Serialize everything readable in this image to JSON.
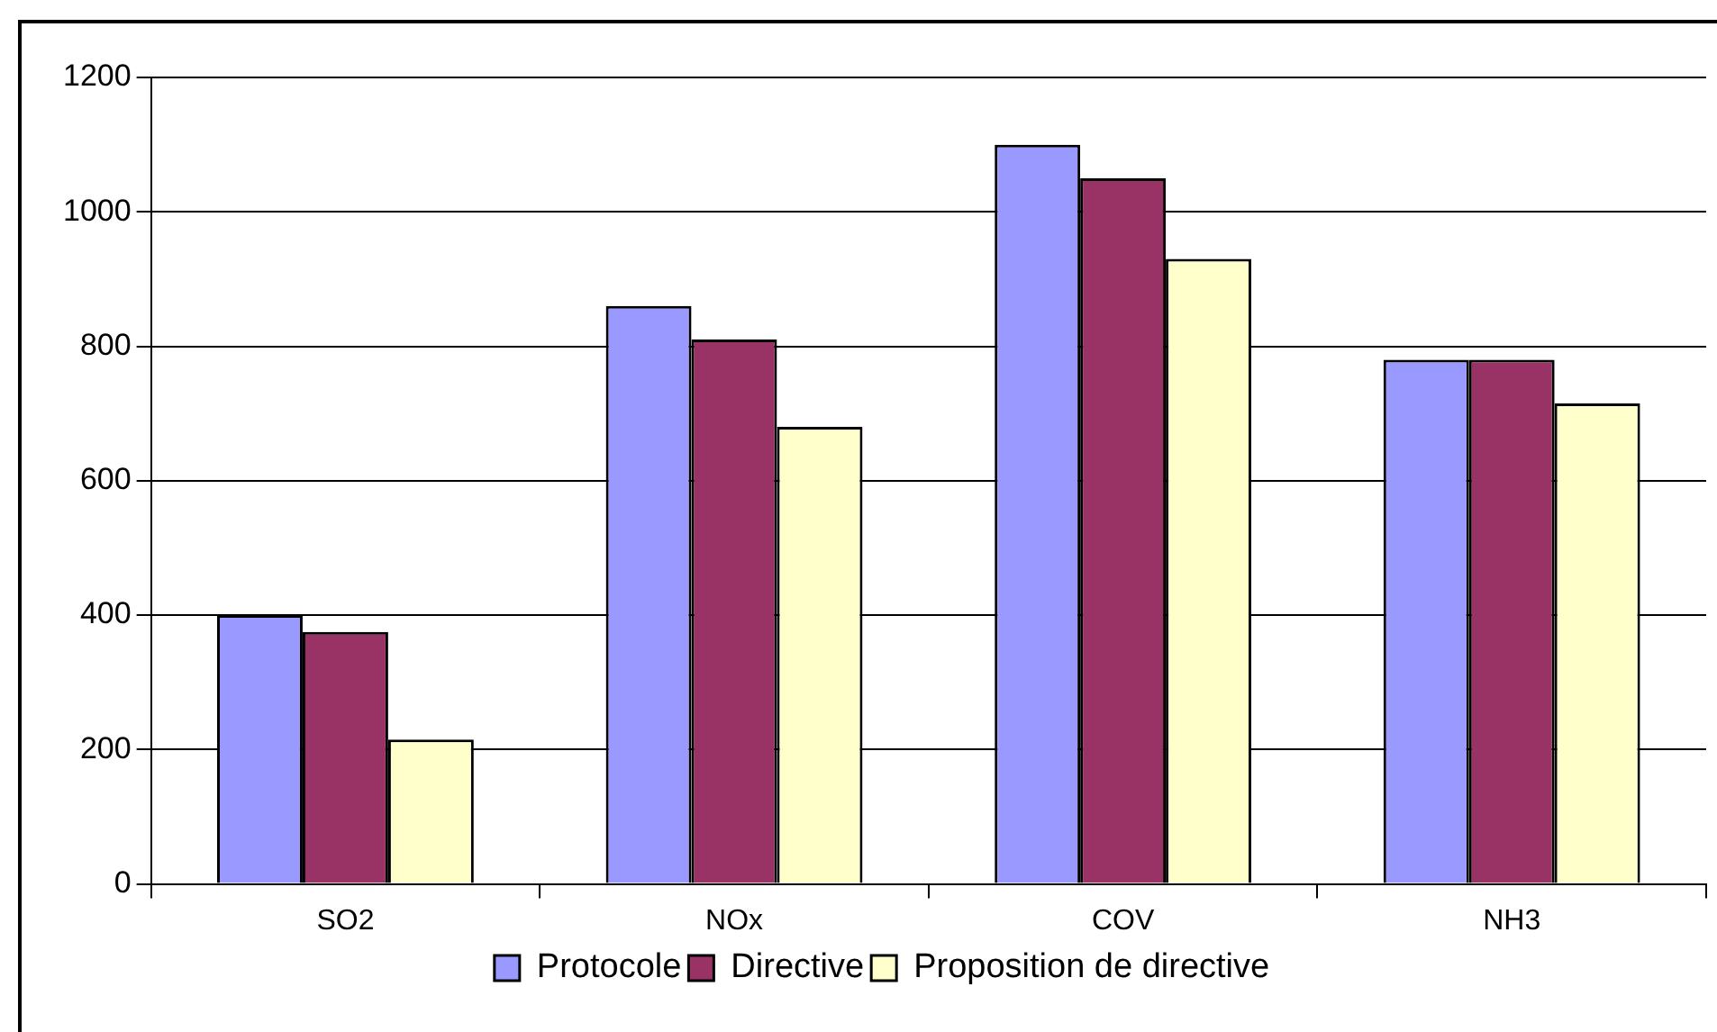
{
  "chart_data": {
    "type": "bar",
    "categories": [
      "SO2",
      "NOx",
      "COV",
      "NH3"
    ],
    "series": [
      {
        "name": "Protocole",
        "color": "#9999ff",
        "values": [
          400,
          860,
          1100,
          780
        ]
      },
      {
        "name": "Directive",
        "color": "#993366",
        "values": [
          375,
          810,
          1050,
          780
        ]
      },
      {
        "name": "Proposition de directive",
        "color": "#ffffcc",
        "values": [
          215,
          680,
          930,
          715
        ]
      }
    ],
    "ylim": [
      0,
      1200
    ],
    "yticks": [
      0,
      200,
      400,
      600,
      800,
      1000,
      1200
    ],
    "grid": "y",
    "legend": "bottom"
  }
}
